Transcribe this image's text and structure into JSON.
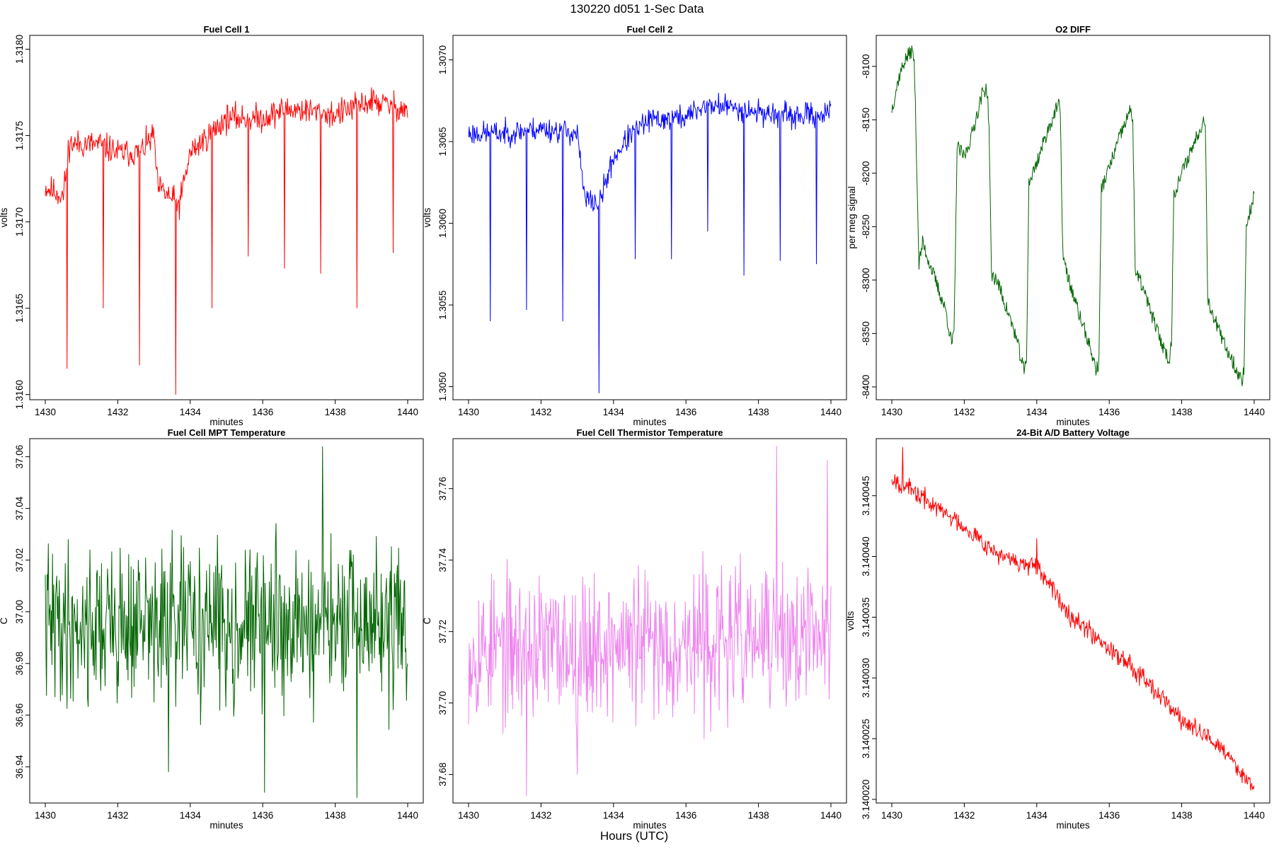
{
  "figure": {
    "title": "130220   d051   1-Sec Data",
    "xlabel": "Hours (UTC)"
  },
  "chart_data": [
    {
      "type": "line",
      "title": "Fuel Cell 1",
      "xlabel": "minutes",
      "ylabel": "volts",
      "color": "#ff0000",
      "xlim": [
        1430,
        1440
      ],
      "ylim": [
        1.31597,
        1.31808
      ],
      "xticks": [
        "1430",
        "1432",
        "1434",
        "1436",
        "1438",
        "1440"
      ],
      "yticks": [
        "1.3160",
        "1.3165",
        "1.3170",
        "1.3175",
        "1.3180"
      ],
      "series": {
        "mode": "noise",
        "points": [
          [
            1430.0,
            1.3172
          ],
          [
            1430.5,
            1.31715
          ],
          [
            1430.65,
            1.31745
          ],
          [
            1431.5,
            1.31745
          ],
          [
            1432.0,
            1.3174
          ],
          [
            1432.6,
            1.3174
          ],
          [
            1433.0,
            1.3175
          ],
          [
            1433.1,
            1.3172
          ],
          [
            1433.7,
            1.3171
          ],
          [
            1434.0,
            1.3174
          ],
          [
            1434.5,
            1.3175
          ],
          [
            1435.0,
            1.3176
          ],
          [
            1436.0,
            1.3176
          ],
          [
            1436.6,
            1.31765
          ],
          [
            1437.0,
            1.31765
          ],
          [
            1438.0,
            1.31762
          ],
          [
            1439.0,
            1.3177
          ],
          [
            1440.0,
            1.31765
          ]
        ],
        "amp": 0.00012,
        "spikes": [
          [
            1430.6,
            1.31678
          ],
          [
            1430.6,
            1.31615
          ],
          [
            1431.6,
            1.3165
          ],
          [
            1432.6,
            1.31617
          ],
          [
            1433.6,
            1.316
          ],
          [
            1434.6,
            1.3165
          ],
          [
            1435.6,
            1.3168
          ],
          [
            1436.6,
            1.31673
          ],
          [
            1437.6,
            1.3167
          ],
          [
            1438.6,
            1.3165
          ],
          [
            1439.6,
            1.31682
          ]
        ],
        "seed": 11
      }
    },
    {
      "type": "line",
      "title": "Fuel Cell 2",
      "xlabel": "minutes",
      "ylabel": "volts",
      "color": "#0000ff",
      "xlim": [
        1430,
        1440
      ],
      "ylim": [
        1.30492,
        1.30715
      ],
      "xticks": [
        "1430",
        "1432",
        "1434",
        "1436",
        "1438",
        "1440"
      ],
      "yticks": [
        "1.3050",
        "1.3055",
        "1.3060",
        "1.3065",
        "1.3070"
      ],
      "series": {
        "mode": "noise",
        "points": [
          [
            1430.0,
            1.30655
          ],
          [
            1431.0,
            1.30655
          ],
          [
            1432.0,
            1.30658
          ],
          [
            1433.0,
            1.30655
          ],
          [
            1433.2,
            1.30615
          ],
          [
            1433.6,
            1.30612
          ],
          [
            1434.0,
            1.3064
          ],
          [
            1434.5,
            1.30655
          ],
          [
            1435.0,
            1.30663
          ],
          [
            1436.0,
            1.30665
          ],
          [
            1436.5,
            1.30672
          ],
          [
            1437.0,
            1.30672
          ],
          [
            1438.0,
            1.30668
          ],
          [
            1439.0,
            1.30665
          ],
          [
            1440.0,
            1.30668
          ]
        ],
        "amp": 0.00011,
        "spikes": [
          [
            1430.6,
            1.3054
          ],
          [
            1431.6,
            1.30547
          ],
          [
            1432.6,
            1.3054
          ],
          [
            1433.6,
            1.30496
          ],
          [
            1434.6,
            1.30578
          ],
          [
            1435.6,
            1.30578
          ],
          [
            1436.6,
            1.30595
          ],
          [
            1437.6,
            1.30568
          ],
          [
            1438.6,
            1.30577
          ],
          [
            1439.6,
            1.30575
          ]
        ],
        "seed": 23
      }
    },
    {
      "type": "line",
      "title": "O2 DIFF",
      "xlabel": "minutes",
      "ylabel": "per meg signal",
      "color": "#006400",
      "xlim": [
        1430,
        1440
      ],
      "ylim": [
        -8412,
        -8071
      ],
      "xticks": [
        "1430",
        "1432",
        "1434",
        "1436",
        "1438",
        "1440"
      ],
      "yticks": [
        "-8400",
        "-8350",
        "-8300",
        "-8250",
        "-8200",
        "-8150",
        "-8100"
      ],
      "series": {
        "mode": "path",
        "points": [
          [
            1430.0,
            -8140
          ],
          [
            1430.1,
            -8125
          ],
          [
            1430.2,
            -8110
          ],
          [
            1430.35,
            -8095
          ],
          [
            1430.55,
            -8085
          ],
          [
            1430.62,
            -8095
          ],
          [
            1430.68,
            -8180
          ],
          [
            1430.75,
            -8285
          ],
          [
            1430.85,
            -8265
          ],
          [
            1431.0,
            -8280
          ],
          [
            1431.2,
            -8300
          ],
          [
            1431.5,
            -8330
          ],
          [
            1431.65,
            -8360
          ],
          [
            1431.72,
            -8350
          ],
          [
            1431.8,
            -8175
          ],
          [
            1432.0,
            -8185
          ],
          [
            1432.2,
            -8165
          ],
          [
            1432.5,
            -8125
          ],
          [
            1432.62,
            -8120
          ],
          [
            1432.68,
            -8150
          ],
          [
            1432.75,
            -8295
          ],
          [
            1432.9,
            -8300
          ],
          [
            1433.1,
            -8320
          ],
          [
            1433.4,
            -8350
          ],
          [
            1433.65,
            -8385
          ],
          [
            1433.72,
            -8375
          ],
          [
            1433.78,
            -8210
          ],
          [
            1434.0,
            -8190
          ],
          [
            1434.3,
            -8160
          ],
          [
            1434.6,
            -8135
          ],
          [
            1434.65,
            -8145
          ],
          [
            1434.72,
            -8275
          ],
          [
            1434.8,
            -8290
          ],
          [
            1435.1,
            -8325
          ],
          [
            1435.4,
            -8355
          ],
          [
            1435.65,
            -8385
          ],
          [
            1435.72,
            -8375
          ],
          [
            1435.78,
            -8215
          ],
          [
            1436.0,
            -8195
          ],
          [
            1436.3,
            -8165
          ],
          [
            1436.6,
            -8140
          ],
          [
            1436.65,
            -8150
          ],
          [
            1436.72,
            -8295
          ],
          [
            1436.85,
            -8300
          ],
          [
            1437.1,
            -8325
          ],
          [
            1437.4,
            -8355
          ],
          [
            1437.65,
            -8375
          ],
          [
            1437.72,
            -8360
          ],
          [
            1437.78,
            -8220
          ],
          [
            1438.0,
            -8200
          ],
          [
            1438.3,
            -8175
          ],
          [
            1438.6,
            -8150
          ],
          [
            1438.66,
            -8160
          ],
          [
            1438.72,
            -8320
          ],
          [
            1438.85,
            -8330
          ],
          [
            1439.1,
            -8355
          ],
          [
            1439.4,
            -8375
          ],
          [
            1439.65,
            -8395
          ],
          [
            1439.72,
            -8385
          ],
          [
            1439.78,
            -8250
          ],
          [
            1440.0,
            -8220
          ]
        ],
        "amp": 7,
        "spikes": [],
        "seed": 37
      }
    },
    {
      "type": "line",
      "title": "Fuel Cell MPT Temperature",
      "xlabel": "minutes",
      "ylabel": "C",
      "color": "#006400",
      "xlim": [
        1430,
        1440
      ],
      "ylim": [
        36.926,
        37.067
      ],
      "xticks": [
        "1430",
        "1432",
        "1434",
        "1436",
        "1438",
        "1440"
      ],
      "yticks": [
        "36.94",
        "36.96",
        "36.98",
        "37.00",
        "37.02",
        "37.04",
        "37.06"
      ],
      "series": {
        "mode": "noise",
        "points": [
          [
            1430.0,
            36.995
          ],
          [
            1440.0,
            36.995
          ]
        ],
        "amp": 0.045,
        "spikes": [
          [
            1436.05,
            36.93
          ],
          [
            1437.65,
            37.064
          ],
          [
            1438.6,
            36.928
          ],
          [
            1433.4,
            36.938
          ]
        ],
        "seed": 41
      }
    },
    {
      "type": "line",
      "title": "Fuel Cell Thermistor Temperature",
      "xlabel": "minutes",
      "ylabel": "C",
      "color": "#ee82ee",
      "xlim": [
        1430,
        1440
      ],
      "ylim": [
        37.672,
        37.774
      ],
      "xticks": [
        "1430",
        "1432",
        "1434",
        "1436",
        "1438",
        "1440"
      ],
      "yticks": [
        "37.68",
        "37.70",
        "37.72",
        "37.74",
        "37.76"
      ],
      "series": {
        "mode": "noise",
        "points": [
          [
            1430.0,
            37.715
          ],
          [
            1440.0,
            37.718
          ]
        ],
        "amp": 0.03,
        "spikes": [
          [
            1431.6,
            37.674
          ],
          [
            1438.5,
            37.772
          ],
          [
            1439.9,
            37.768
          ],
          [
            1433.0,
            37.68
          ]
        ],
        "seed": 53
      }
    },
    {
      "type": "line",
      "title": "24-Bit A/D Battery Voltage",
      "xlabel": "minutes",
      "ylabel": "volts",
      "color": "#ff0000",
      "xlim": [
        1430,
        1440
      ],
      "ylim": [
        3.1400197,
        3.1400497
      ],
      "xticks": [
        "1430",
        "1432",
        "1434",
        "1436",
        "1438",
        "1440"
      ],
      "yticks": [
        "3.140020",
        "3.140025",
        "3.140030",
        "3.140035",
        "3.140040",
        "3.140045"
      ],
      "series": {
        "mode": "noise",
        "points": [
          [
            1430.0,
            3.1400465
          ],
          [
            1431.0,
            3.1400445
          ],
          [
            1432.0,
            3.1400425
          ],
          [
            1433.0,
            3.14004
          ],
          [
            1434.0,
            3.140039
          ],
          [
            1435.0,
            3.140035
          ],
          [
            1436.0,
            3.1400325
          ],
          [
            1437.0,
            3.14003
          ],
          [
            1438.0,
            3.1400265
          ],
          [
            1439.0,
            3.1400245
          ],
          [
            1440.0,
            3.140021
          ]
        ],
        "amp": 1.2e-06,
        "spikes": [
          [
            1430.3,
            3.140049
          ],
          [
            1434.0,
            3.1400415
          ]
        ],
        "seed": 67
      }
    }
  ]
}
